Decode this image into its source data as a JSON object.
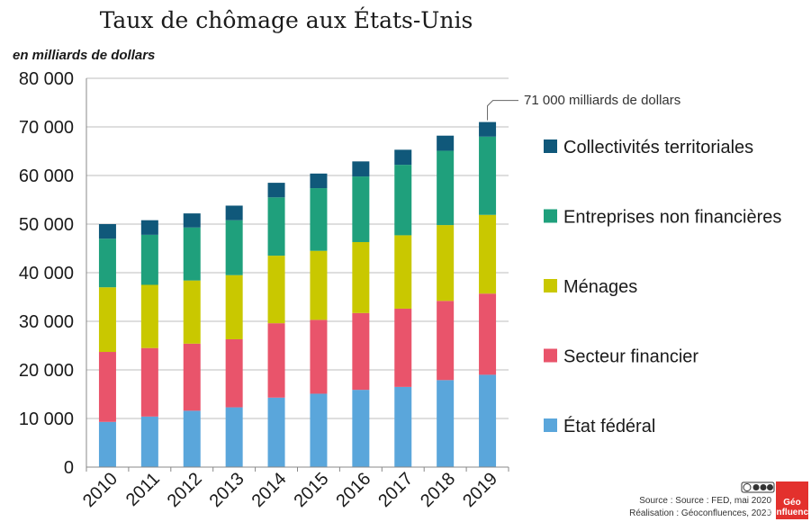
{
  "chart_data": {
    "type": "bar",
    "stacked": true,
    "title": "Taux de chômage aux États-Unis",
    "ylabel": "en milliards de dollars",
    "xlabel": "",
    "ylim": [
      0,
      80000
    ],
    "yticks": [
      0,
      10000,
      20000,
      30000,
      40000,
      50000,
      60000,
      70000,
      80000
    ],
    "ytick_labels": [
      "0",
      "10 000",
      "20 000",
      "30 000",
      "40 000",
      "50 000",
      "60 000",
      "70 000",
      "80 000"
    ],
    "grid": "horizontal",
    "legend_position": "right",
    "categories": [
      "2010",
      "2011",
      "2012",
      "2013",
      "2014",
      "2015",
      "2016",
      "2017",
      "2018",
      "2019"
    ],
    "series": [
      {
        "name": "État fédéral",
        "color": "#5aa6db",
        "values": [
          9300,
          10400,
          11600,
          12300,
          14300,
          15100,
          15900,
          16500,
          17900,
          19000
        ]
      },
      {
        "name": "Secteur financier",
        "color": "#e9546b",
        "values": [
          14400,
          14100,
          13800,
          14000,
          15300,
          15200,
          15800,
          16100,
          16300,
          16700
        ]
      },
      {
        "name": "Ménages",
        "color": "#c9c800",
        "values": [
          13300,
          13000,
          13000,
          13200,
          13900,
          14200,
          14600,
          15100,
          15600,
          16200
        ]
      },
      {
        "name": "Entreprises non financières",
        "color": "#1fa07c",
        "values": [
          10000,
          10300,
          10900,
          11300,
          12000,
          12900,
          13500,
          14500,
          15300,
          16100
        ]
      },
      {
        "name": "Collectivités territoriales",
        "color": "#10587a",
        "values": [
          3000,
          3000,
          2900,
          3000,
          3000,
          3000,
          3100,
          3100,
          3100,
          3000
        ]
      }
    ],
    "annotation": {
      "text": "71 000 milliards de dollars",
      "category": "2019",
      "value": 71000
    }
  },
  "credits": {
    "source": "Source : Source : FED, mai 2020",
    "realisation": "Réalisation : Géoconfluences, 2020",
    "license_icon": "creative-commons-license-icon",
    "logo_text": "Géo",
    "logo_sub": "confluences",
    "logo_color": "#e3312d"
  }
}
